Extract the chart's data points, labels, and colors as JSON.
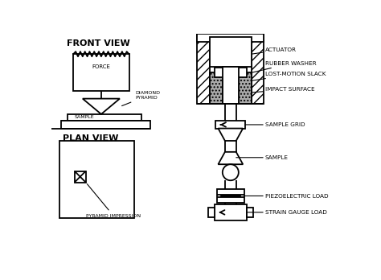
{
  "bg_color": "#ffffff",
  "line_color": "#000000",
  "title_front": "FRONT VIEW",
  "title_plan": "PLAN VIEW",
  "labels": {
    "force": "FORCE",
    "diamond": "DIAMOND\nPYRAMID",
    "sample_fv": "SAMPLE",
    "actuator": "ACTUATOR",
    "rubber_washer": "RUBBER WASHER",
    "lost_motion": "LOST-MOTION SLACK",
    "impact_surface": "IMPACT SURFACE",
    "sample_grid": "SAMPLE GRID",
    "sample": "SAMPLE",
    "piezoelectric": "PIEZOELECTRIC LOAD",
    "strain_gauge": "STRAIN GAUGE LOAD",
    "pyramid_impression": "PYRAMID IMPRESSION"
  }
}
